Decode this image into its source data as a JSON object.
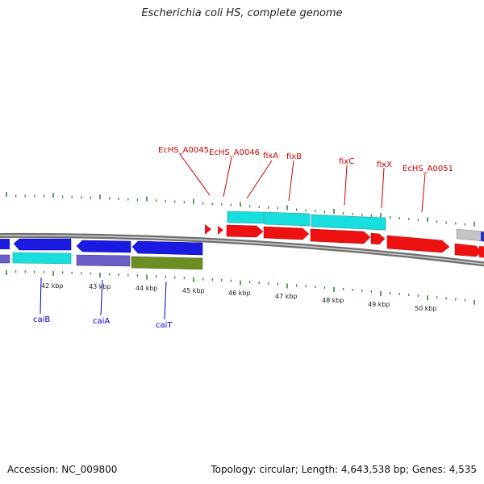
{
  "title": "Escherichia coli HS, complete genome",
  "footer": {
    "accession": "Accession: NC_009800",
    "stats": "Topology: circular; Length: 4,643,538 bp; Genes: 4,535"
  },
  "colors": {
    "forward_label": "#cc0000",
    "reverse_label": "#0000cc",
    "tick": "#338833",
    "backbone": "#888888"
  },
  "scale_labels": [
    "42 kbp",
    "43 kbp",
    "44 kbp",
    "45 kbp",
    "46 kbp",
    "47 kbp",
    "48 kbp",
    "49 kbp",
    "50 kbp"
  ],
  "forward_gene_labels": [
    "EcHS_A0045",
    "EcHS_A0046",
    "fixA",
    "fixB",
    "fixC",
    "fixX",
    "EcHS_A0051"
  ],
  "reverse_gene_labels": [
    "caiB",
    "caiA",
    "caiT"
  ]
}
